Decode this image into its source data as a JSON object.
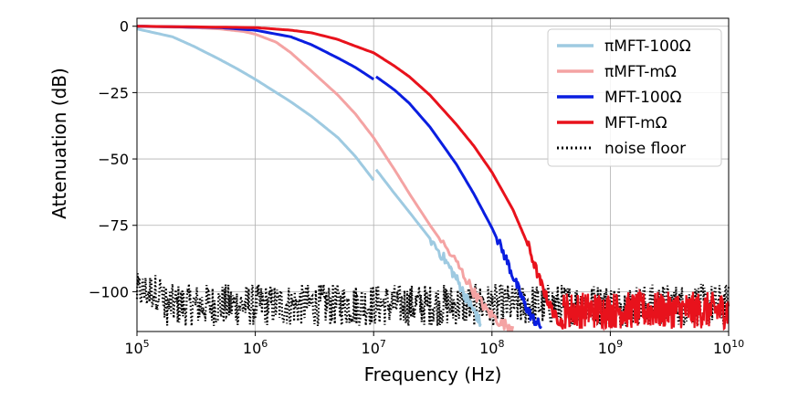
{
  "chart_data": {
    "type": "line",
    "xlabel": "Frequency (Hz)",
    "ylabel": "Attenuation (dB)",
    "xscale": "log",
    "xlim": [
      100000,
      10000000000
    ],
    "ylim": [
      -115,
      3
    ],
    "grid": true,
    "legend_placement": "top-right",
    "x_ticks": [
      {
        "value": 100000,
        "base": "10",
        "exp": "5"
      },
      {
        "value": 1000000,
        "base": "10",
        "exp": "6"
      },
      {
        "value": 10000000,
        "base": "10",
        "exp": "7"
      },
      {
        "value": 100000000,
        "base": "10",
        "exp": "8"
      },
      {
        "value": 1000000000,
        "base": "10",
        "exp": "9"
      },
      {
        "value": 10000000000,
        "base": "10",
        "exp": "10"
      }
    ],
    "y_ticks": [
      {
        "value": 0,
        "label": "0"
      },
      {
        "value": -25,
        "label": "−25"
      },
      {
        "value": -50,
        "label": "−50"
      },
      {
        "value": -75,
        "label": "−75"
      },
      {
        "value": -100,
        "label": "−100"
      }
    ],
    "series": [
      {
        "name": "πMFT-100Ω",
        "color": "#9ecae1",
        "style": "solid",
        "segments": [
          [
            [
              100000,
              -1
            ],
            [
              200000,
              -4
            ],
            [
              300000,
              -7.5
            ],
            [
              500000,
              -12.5
            ],
            [
              700000,
              -16
            ],
            [
              1000000,
              -20
            ],
            [
              2000000,
              -28.5
            ],
            [
              3000000,
              -34
            ],
            [
              5000000,
              -42
            ],
            [
              7000000,
              -49
            ],
            [
              10000000,
              -58
            ]
          ],
          [
            [
              10500000,
              -54
            ],
            [
              15000000,
              -63
            ],
            [
              20000000,
              -70
            ],
            [
              30000000,
              -80
            ],
            [
              40000000,
              -88
            ],
            [
              50000000,
              -95
            ],
            [
              60000000,
              -102
            ],
            [
              70000000,
              -107
            ],
            [
              80000000,
              -112
            ]
          ]
        ]
      },
      {
        "name": "πMFT-mΩ",
        "color": "#f4a3a3",
        "style": "solid",
        "segments": [
          [
            [
              100000,
              0
            ],
            [
              300000,
              -0.5
            ],
            [
              500000,
              -1
            ],
            [
              800000,
              -2
            ],
            [
              1000000,
              -3
            ],
            [
              1500000,
              -6
            ],
            [
              2000000,
              -10
            ],
            [
              3000000,
              -17
            ],
            [
              5000000,
              -26
            ],
            [
              7000000,
              -33
            ],
            [
              10000000,
              -42
            ],
            [
              15000000,
              -54
            ],
            [
              20000000,
              -63
            ],
            [
              30000000,
              -75
            ],
            [
              50000000,
              -89
            ],
            [
              70000000,
              -100
            ],
            [
              90000000,
              -107
            ],
            [
              120000000,
              -112
            ],
            [
              150000000,
              -113
            ]
          ]
        ]
      },
      {
        "name": "MFT-100Ω",
        "color": "#0a1ee0",
        "style": "solid",
        "segments": [
          [
            [
              100000,
              0
            ],
            [
              500000,
              -0.5
            ],
            [
              1000000,
              -1.5
            ],
            [
              2000000,
              -4
            ],
            [
              3000000,
              -7
            ],
            [
              5000000,
              -12
            ],
            [
              7000000,
              -15.5
            ],
            [
              10000000,
              -20
            ]
          ],
          [
            [
              10500000,
              -19
            ],
            [
              15000000,
              -24
            ],
            [
              20000000,
              -29
            ],
            [
              30000000,
              -38
            ],
            [
              50000000,
              -52
            ],
            [
              70000000,
              -63
            ],
            [
              100000000,
              -76
            ],
            [
              130000000,
              -87
            ],
            [
              160000000,
              -97
            ],
            [
              190000000,
              -105
            ],
            [
              220000000,
              -110
            ],
            [
              260000000,
              -113
            ]
          ]
        ]
      },
      {
        "name": "MFT-mΩ",
        "color": "#e8121c",
        "style": "solid",
        "segments": [
          [
            [
              100000,
              0
            ],
            [
              1000000,
              -0.5
            ],
            [
              2000000,
              -1.5
            ],
            [
              3000000,
              -2.5
            ],
            [
              5000000,
              -5
            ],
            [
              7000000,
              -7.5
            ],
            [
              10000000,
              -10
            ],
            [
              15000000,
              -15
            ],
            [
              20000000,
              -19
            ],
            [
              30000000,
              -26
            ],
            [
              50000000,
              -37
            ],
            [
              70000000,
              -45
            ],
            [
              100000000,
              -55
            ],
            [
              150000000,
              -69
            ],
            [
              200000000,
              -82
            ],
            [
              250000000,
              -95
            ],
            [
              300000000,
              -104
            ],
            [
              350000000,
              -110
            ],
            [
              400000000,
              -112
            ]
          ]
        ]
      },
      {
        "name": "noise floor",
        "color": "#000000",
        "style": "dotted",
        "segments": [
          [
            [
              100000,
              -96
            ],
            [
              102000,
              -104
            ],
            [
              104000,
              -99
            ],
            [
              106000,
              -112
            ],
            [
              108000,
              -101
            ],
            [
              110000,
              -108
            ],
            [
              112000,
              -97
            ],
            [
              115000,
              -110
            ],
            [
              120000,
              -103
            ],
            [
              125000,
              -113
            ],
            [
              130000,
              -99
            ],
            [
              140000,
              -108
            ],
            [
              150000,
              -104
            ]
          ]
        ]
      }
    ]
  }
}
